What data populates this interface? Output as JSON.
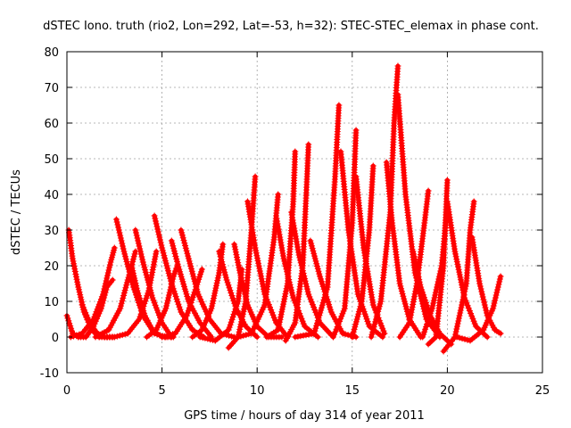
{
  "chart_data": {
    "type": "scatter",
    "title": "dSTEC Iono. truth (rio2, Lon=292, Lat=-53, h=32): STEC-STEC_elemax in phase cont.",
    "xlabel": "GPS time / hours of day 314 of year 2011",
    "ylabel": "dSTEC  / TECUs",
    "xlim": [
      0,
      25
    ],
    "ylim": [
      -10,
      80
    ],
    "xticks": [
      0,
      5,
      10,
      15,
      20,
      25
    ],
    "yticks": [
      -10,
      0,
      10,
      20,
      30,
      40,
      50,
      60,
      70,
      80
    ],
    "grid": true,
    "marker": "plus",
    "color": "#ff0000",
    "series": [
      {
        "x": [
          0.0,
          0.3,
          0.6,
          1.0,
          1.4,
          1.8,
          2.1,
          2.4
        ],
        "y": [
          6,
          1,
          0,
          0,
          3,
          8,
          14,
          16
        ]
      },
      {
        "x": [
          0.1,
          0.3,
          0.6,
          0.9,
          1.3,
          1.7,
          2.1,
          2.5
        ],
        "y": [
          30,
          22,
          14,
          7,
          2,
          0,
          0,
          0
        ]
      },
      {
        "x": [
          0.8,
          1.2,
          1.6,
          2.0,
          2.4
        ],
        "y": [
          9,
          4,
          1,
          0,
          0
        ]
      },
      {
        "x": [
          0.2,
          0.8,
          1.4,
          1.9,
          2.3,
          2.5
        ],
        "y": [
          0,
          1,
          5,
          12,
          21,
          25
        ]
      },
      {
        "x": [
          2.6,
          3.0,
          3.5,
          4.0,
          4.6,
          5.2
        ],
        "y": [
          33,
          24,
          14,
          6,
          1,
          0
        ]
      },
      {
        "x": [
          1.5,
          2.2,
          2.8,
          3.2,
          3.6
        ],
        "y": [
          0,
          2,
          8,
          16,
          24
        ]
      },
      {
        "x": [
          3.6,
          4.0,
          4.5,
          5.0,
          5.5
        ],
        "y": [
          30,
          21,
          11,
          4,
          0
        ]
      },
      {
        "x": [
          3.4,
          3.7,
          4.1,
          4.5,
          5.0,
          5.6
        ],
        "y": [
          20,
          13,
          6,
          2,
          0,
          0
        ]
      },
      {
        "x": [
          2.5,
          3.2,
          3.8,
          4.3,
          4.7
        ],
        "y": [
          0,
          1,
          5,
          13,
          24
        ]
      },
      {
        "x": [
          4.6,
          5.0,
          5.5,
          6.0,
          6.6,
          7.2
        ],
        "y": [
          34,
          25,
          15,
          7,
          2,
          0
        ]
      },
      {
        "x": [
          4.2,
          4.7,
          5.2,
          5.6,
          5.8
        ],
        "y": [
          0,
          2,
          8,
          17,
          20
        ]
      },
      {
        "x": [
          5.5,
          5.9,
          6.4,
          7.0,
          7.6
        ],
        "y": [
          27,
          19,
          10,
          4,
          0
        ]
      },
      {
        "x": [
          6.0,
          6.4,
          6.9,
          7.5,
          8.1,
          8.8
        ],
        "y": [
          30,
          22,
          12,
          5,
          1,
          0
        ]
      },
      {
        "x": [
          5.0,
          5.7,
          6.3,
          6.8,
          7.1
        ],
        "y": [
          0,
          1,
          6,
          14,
          19
        ]
      },
      {
        "x": [
          6.6,
          7.1,
          7.6,
          8.0,
          8.2
        ],
        "y": [
          0,
          2,
          8,
          18,
          26
        ]
      },
      {
        "x": [
          8.0,
          8.4,
          8.9,
          9.4,
          10.0
        ],
        "y": [
          24,
          16,
          8,
          3,
          0
        ]
      },
      {
        "x": [
          8.8,
          9.1,
          9.5,
          10.0,
          10.6,
          11.3
        ],
        "y": [
          26,
          18,
          9,
          3,
          0,
          0
        ]
      },
      {
        "x": [
          7.0,
          7.8,
          8.5,
          9.0,
          9.2
        ],
        "y": [
          0,
          -1,
          2,
          10,
          19
        ]
      },
      {
        "x": [
          8.5,
          9.0,
          9.4,
          9.7,
          9.9
        ],
        "y": [
          -3,
          0,
          10,
          30,
          45
        ]
      },
      {
        "x": [
          9.5,
          9.9,
          10.4,
          11.0,
          11.6
        ],
        "y": [
          38,
          25,
          12,
          4,
          0
        ]
      },
      {
        "x": [
          9.0,
          9.7,
          10.4,
          10.9,
          11.1
        ],
        "y": [
          0,
          1,
          9,
          28,
          40
        ]
      },
      {
        "x": [
          11.0,
          11.4,
          11.9,
          12.5,
          13.2
        ],
        "y": [
          34,
          22,
          11,
          3,
          0
        ]
      },
      {
        "x": [
          10.5,
          11.1,
          11.6,
          11.9,
          12.0
        ],
        "y": [
          0,
          2,
          15,
          38,
          52
        ]
      },
      {
        "x": [
          11.8,
          12.2,
          12.7,
          13.3,
          14.0
        ],
        "y": [
          35,
          23,
          12,
          4,
          0
        ]
      },
      {
        "x": [
          11.5,
          12.0,
          12.4,
          12.6,
          12.7
        ],
        "y": [
          -1,
          4,
          20,
          42,
          54
        ]
      },
      {
        "x": [
          12.8,
          13.3,
          13.9,
          14.5,
          15.2
        ],
        "y": [
          27,
          17,
          7,
          1,
          0
        ]
      },
      {
        "x": [
          12.0,
          13.0,
          13.7,
          14.1,
          14.3
        ],
        "y": [
          0,
          1,
          14,
          45,
          65
        ]
      },
      {
        "x": [
          14.4,
          14.8,
          15.3,
          15.9,
          16.6
        ],
        "y": [
          52,
          30,
          12,
          3,
          0
        ]
      },
      {
        "x": [
          14.0,
          14.6,
          15.0,
          15.2
        ],
        "y": [
          0,
          8,
          32,
          58
        ]
      },
      {
        "x": [
          15.2,
          15.6,
          16.1,
          16.7
        ],
        "y": [
          45,
          25,
          9,
          1
        ]
      },
      {
        "x": [
          15.0,
          15.5,
          15.9,
          16.1
        ],
        "y": [
          0,
          10,
          30,
          48
        ]
      },
      {
        "x": [
          16.0,
          16.5,
          17.0,
          17.2,
          17.4
        ],
        "y": [
          0,
          10,
          35,
          60,
          76
        ]
      },
      {
        "x": [
          17.4,
          17.8,
          18.3,
          18.9,
          19.6
        ],
        "y": [
          68,
          40,
          18,
          5,
          0
        ]
      },
      {
        "x": [
          16.8,
          17.1,
          17.5,
          18.0,
          18.6
        ],
        "y": [
          49,
          32,
          15,
          5,
          0
        ]
      },
      {
        "x": [
          18.2,
          18.6,
          19.1,
          19.6,
          20.2
        ],
        "y": [
          24,
          14,
          6,
          1,
          -2
        ]
      },
      {
        "x": [
          17.5,
          18.0,
          18.4,
          18.8,
          19.0
        ],
        "y": [
          0,
          4,
          15,
          32,
          41
        ]
      },
      {
        "x": [
          19.0,
          19.4,
          19.8,
          20.0
        ],
        "y": [
          -2,
          0,
          20,
          44
        ]
      },
      {
        "x": [
          20.0,
          20.4,
          20.9,
          21.5,
          22.1
        ],
        "y": [
          38,
          24,
          11,
          3,
          0
        ]
      },
      {
        "x": [
          19.8,
          20.4,
          21.0,
          21.2,
          21.4
        ],
        "y": [
          -4,
          0,
          15,
          30,
          38
        ]
      },
      {
        "x": [
          21.3,
          21.7,
          22.1,
          22.5,
          22.8
        ],
        "y": [
          28,
          15,
          6,
          2,
          1
        ]
      },
      {
        "x": [
          20.5,
          21.2,
          21.9,
          22.4,
          22.8
        ],
        "y": [
          0,
          -1,
          2,
          8,
          17
        ]
      },
      {
        "x": [
          18.7,
          19.2,
          19.7,
          20.0
        ],
        "y": [
          0,
          8,
          20,
          36
        ]
      }
    ]
  }
}
